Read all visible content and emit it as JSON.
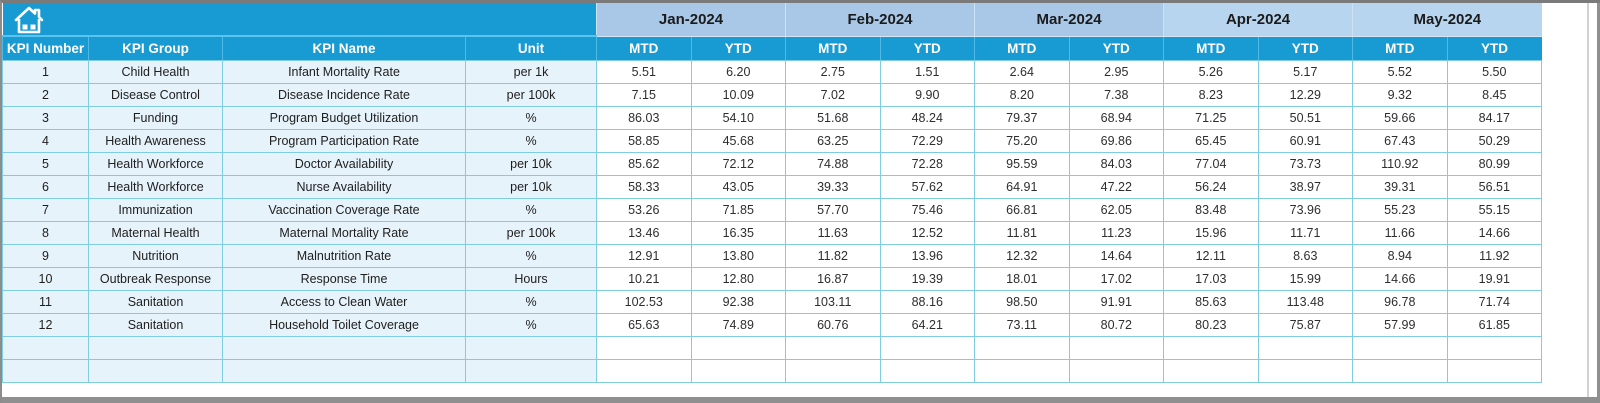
{
  "header": {
    "home_icon": "home"
  },
  "table": {
    "left_headers": [
      "KPI Number",
      "KPI Group",
      "KPI Name",
      "Unit"
    ],
    "sub_headers": [
      "MTD",
      "YTD"
    ],
    "months": [
      {
        "label": "Jan-2024",
        "shade": "#a9c8e7"
      },
      {
        "label": "Feb-2024",
        "shade": "#a9c8e7"
      },
      {
        "label": "Mar-2024",
        "shade": "#a9c8e7"
      },
      {
        "label": "Apr-2024",
        "shade": "#b8d5ef"
      },
      {
        "label": "May-2024",
        "shade": "#b8d5ef"
      }
    ],
    "rows": [
      {
        "number": "1",
        "group": "Child Health",
        "name": "Infant Mortality Rate",
        "unit": "per 1k",
        "values": [
          "5.51",
          "6.20",
          "2.75",
          "1.51",
          "2.64",
          "2.95",
          "5.26",
          "5.17",
          "5.52",
          "5.50"
        ]
      },
      {
        "number": "2",
        "group": "Disease Control",
        "name": "Disease Incidence Rate",
        "unit": "per 100k",
        "values": [
          "7.15",
          "10.09",
          "7.02",
          "9.90",
          "8.20",
          "7.38",
          "8.23",
          "12.29",
          "9.32",
          "8.45"
        ]
      },
      {
        "number": "3",
        "group": "Funding",
        "name": "Program Budget Utilization",
        "unit": "%",
        "values": [
          "86.03",
          "54.10",
          "51.68",
          "48.24",
          "79.37",
          "68.94",
          "71.25",
          "50.51",
          "59.66",
          "84.17"
        ]
      },
      {
        "number": "4",
        "group": "Health Awareness",
        "name": "Program Participation Rate",
        "unit": "%",
        "values": [
          "58.85",
          "45.68",
          "63.25",
          "72.29",
          "75.20",
          "69.86",
          "65.45",
          "60.91",
          "67.43",
          "50.29"
        ]
      },
      {
        "number": "5",
        "group": "Health Workforce",
        "name": "Doctor Availability",
        "unit": "per 10k",
        "values": [
          "85.62",
          "72.12",
          "74.88",
          "72.28",
          "95.59",
          "84.03",
          "77.04",
          "73.73",
          "110.92",
          "80.99"
        ]
      },
      {
        "number": "6",
        "group": "Health Workforce",
        "name": "Nurse Availability",
        "unit": "per 10k",
        "values": [
          "58.33",
          "43.05",
          "39.33",
          "57.62",
          "64.91",
          "47.22",
          "56.24",
          "38.97",
          "39.31",
          "56.51"
        ]
      },
      {
        "number": "7",
        "group": "Immunization",
        "name": "Vaccination Coverage Rate",
        "unit": "%",
        "values": [
          "53.26",
          "71.85",
          "57.70",
          "75.46",
          "66.81",
          "62.05",
          "83.48",
          "73.96",
          "55.23",
          "55.15"
        ]
      },
      {
        "number": "8",
        "group": "Maternal Health",
        "name": "Maternal Mortality Rate",
        "unit": "per 100k",
        "values": [
          "13.46",
          "16.35",
          "11.63",
          "12.52",
          "11.81",
          "11.23",
          "15.96",
          "11.71",
          "11.66",
          "14.66"
        ]
      },
      {
        "number": "9",
        "group": "Nutrition",
        "name": "Malnutrition Rate",
        "unit": "%",
        "values": [
          "12.91",
          "13.80",
          "11.82",
          "13.96",
          "12.32",
          "14.64",
          "12.11",
          "8.63",
          "8.94",
          "11.92"
        ]
      },
      {
        "number": "10",
        "group": "Outbreak Response",
        "name": "Response Time",
        "unit": "Hours",
        "values": [
          "10.21",
          "12.80",
          "16.87",
          "19.39",
          "18.01",
          "17.02",
          "17.03",
          "15.99",
          "14.66",
          "19.91"
        ]
      },
      {
        "number": "11",
        "group": "Sanitation",
        "name": "Access to Clean Water",
        "unit": "%",
        "values": [
          "102.53",
          "92.38",
          "103.11",
          "88.16",
          "98.50",
          "91.91",
          "85.63",
          "113.48",
          "96.78",
          "71.74"
        ]
      },
      {
        "number": "12",
        "group": "Sanitation",
        "name": "Household Toilet Coverage",
        "unit": "%",
        "values": [
          "65.63",
          "74.89",
          "60.76",
          "64.21",
          "73.11",
          "80.72",
          "80.23",
          "75.87",
          "57.99",
          "61.85"
        ]
      }
    ],
    "empty_row_count": 2
  },
  "colors": {
    "header_teal": "#189ad2",
    "grid_border": "#7ecde2",
    "left_cell_bg": "#e7f3fa",
    "data_cell_bg": "#ffffff",
    "month_band_light": "#a9c8e7",
    "month_band_lighter": "#b8d5ef",
    "frame_gray": "#8f8f8f"
  }
}
